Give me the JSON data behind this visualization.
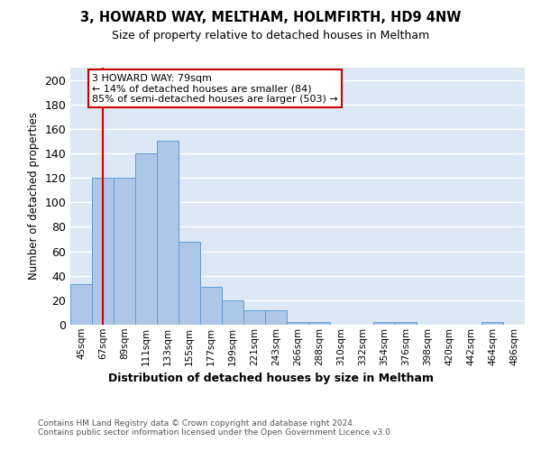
{
  "title": "3, HOWARD WAY, MELTHAM, HOLMFIRTH, HD9 4NW",
  "subtitle": "Size of property relative to detached houses in Meltham",
  "xlabel": "Distribution of detached houses by size in Meltham",
  "ylabel": "Number of detached properties",
  "categories": [
    "45sqm",
    "67sqm",
    "89sqm",
    "111sqm",
    "133sqm",
    "155sqm",
    "177sqm",
    "199sqm",
    "221sqm",
    "243sqm",
    "266sqm",
    "288sqm",
    "310sqm",
    "332sqm",
    "354sqm",
    "376sqm",
    "398sqm",
    "420sqm",
    "442sqm",
    "464sqm",
    "486sqm"
  ],
  "values": [
    33,
    120,
    120,
    140,
    150,
    68,
    31,
    20,
    12,
    12,
    2,
    2,
    0,
    0,
    2,
    2,
    0,
    0,
    0,
    2,
    0
  ],
  "bar_color": "#aec6e8",
  "bar_edge_color": "#5a9fd4",
  "background_color": "#dce8f5",
  "grid_color": "#ffffff",
  "property_line_x": 1,
  "property_line_color": "#cc0000",
  "annotation_text": "3 HOWARD WAY: 79sqm\n← 14% of detached houses are smaller (84)\n85% of semi-detached houses are larger (503) →",
  "annotation_box_color": "#ffffff",
  "annotation_box_edge_color": "#cc0000",
  "footer_text": "Contains HM Land Registry data © Crown copyright and database right 2024.\nContains public sector information licensed under the Open Government Licence v3.0.",
  "ylim": [
    0,
    210
  ],
  "yticks": [
    0,
    20,
    40,
    60,
    80,
    100,
    120,
    140,
    160,
    180,
    200
  ]
}
